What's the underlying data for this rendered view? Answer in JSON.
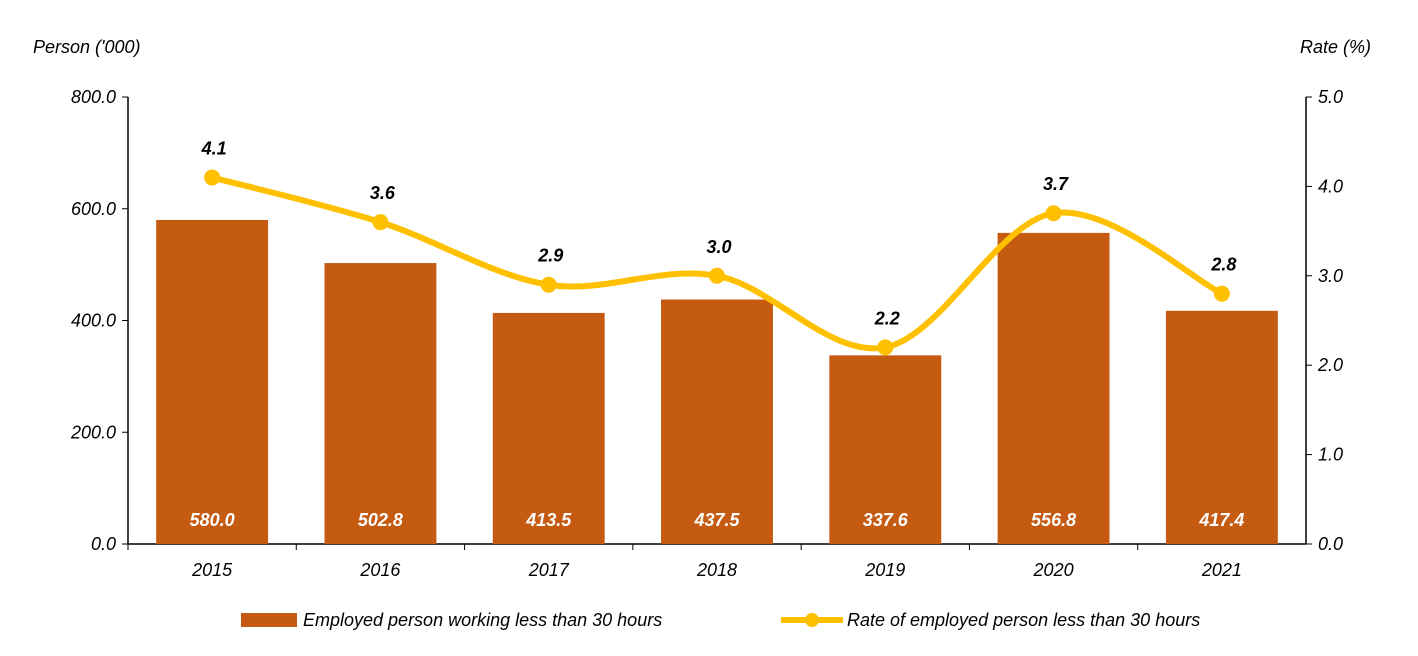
{
  "chart_data": {
    "type": "bar+line",
    "categories": [
      "2015",
      "2016",
      "2017",
      "2018",
      "2019",
      "2020",
      "2021"
    ],
    "series": [
      {
        "name": "Employed person working less than 30 hours",
        "type": "bar",
        "axis": "left",
        "values": [
          580.0,
          502.8,
          413.5,
          437.5,
          337.6,
          556.8,
          417.4
        ],
        "labels": [
          "580.0",
          "502.8",
          "413.5",
          "437.5",
          "337.6",
          "556.8",
          "417.4"
        ]
      },
      {
        "name": "Rate of employed person less than 30 hours",
        "type": "line",
        "axis": "right",
        "smooth": true,
        "values": [
          4.1,
          3.6,
          2.9,
          3.0,
          2.2,
          3.7,
          2.8
        ],
        "labels": [
          "4.1",
          "3.6",
          "2.9",
          "3.0",
          "2.2",
          "3.7",
          "2.8"
        ]
      }
    ],
    "ylabel": "Person ('000)",
    "y2label": "Rate (%)",
    "ylim": [
      0,
      800
    ],
    "y2lim": [
      0,
      5
    ],
    "yticks": [
      "0.0",
      "200.0",
      "400.0",
      "600.0",
      "800.0"
    ],
    "y2ticks": [
      "0.0",
      "1.0",
      "2.0",
      "3.0",
      "4.0",
      "5.0"
    ],
    "grid": false,
    "legend_position": "bottom",
    "colors": {
      "bar": "#C55A11",
      "line": "#FFC000"
    }
  }
}
